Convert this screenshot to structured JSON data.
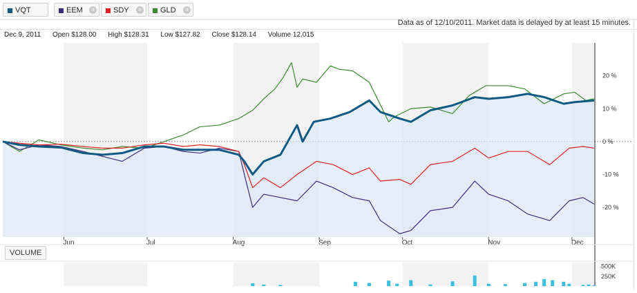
{
  "tickers": [
    {
      "symbol": "VQT",
      "color": "#0f5a82",
      "removable": false
    },
    {
      "symbol": "EEM",
      "color": "#3d2a7a",
      "removable": true
    },
    {
      "symbol": "SDY",
      "color": "#e02020",
      "removable": true
    },
    {
      "symbol": "GLD",
      "color": "#3a8a2e",
      "removable": true
    }
  ],
  "as_of_text": "Data as of 12/10/2011. Market data is delayed by at least 15 minutes.",
  "quote": {
    "date": "Dec 9, 2011",
    "open": "Open $128.00",
    "high": "High $128.31",
    "low": "Low $127.82",
    "close": "Close $128.14",
    "volume": "Volume 12,015"
  },
  "volume_button": "VOLUME",
  "colors": {
    "vqt": "#0f5a82",
    "eem": "#3d2a7a",
    "sdy": "#e02020",
    "gld": "#3a8a2e",
    "fill": "#dde9f7",
    "band": "#f2f2f2",
    "volume": "#3bbfe0"
  },
  "chart_data": {
    "type": "line",
    "x_type": "date",
    "date_range": [
      "2011-05-10",
      "2011-12-09"
    ],
    "x_tick_labels": [
      "Jun",
      "Jul",
      "Aug",
      "Sep",
      "Oct",
      "Nov",
      "Dec"
    ],
    "x_ticks": [
      "2011-06-01",
      "2011-07-01",
      "2011-08-01",
      "2011-09-01",
      "2011-10-01",
      "2011-11-01",
      "2011-12-01"
    ],
    "y_tick_labels": [
      "20 %",
      "10 %",
      "0 %",
      "-10 %",
      "-20 %"
    ],
    "y_ticks": [
      20,
      10,
      0,
      -10,
      -20
    ],
    "ylim": [
      -29,
      30
    ],
    "y_unit": "%",
    "shaded_months": [
      "Jun",
      "Aug",
      "Oct",
      "Dec"
    ],
    "series": [
      {
        "name": "GLD",
        "color": "#3a8a2e",
        "points": [
          [
            "2011-05-10",
            0
          ],
          [
            "2011-05-16",
            -3
          ],
          [
            "2011-05-23",
            0.5
          ],
          [
            "2011-05-31",
            -1
          ],
          [
            "2011-06-08",
            -2
          ],
          [
            "2011-06-15",
            -2.5
          ],
          [
            "2011-06-22",
            -1.5
          ],
          [
            "2011-06-30",
            -2
          ],
          [
            "2011-07-07",
            0
          ],
          [
            "2011-07-14",
            2
          ],
          [
            "2011-07-20",
            4.5
          ],
          [
            "2011-07-27",
            5
          ],
          [
            "2011-08-03",
            7
          ],
          [
            "2011-08-08",
            9.5
          ],
          [
            "2011-08-12",
            13
          ],
          [
            "2011-08-16",
            16
          ],
          [
            "2011-08-19",
            19.5
          ],
          [
            "2011-08-22",
            24
          ],
          [
            "2011-08-24",
            16.5
          ],
          [
            "2011-08-26",
            19
          ],
          [
            "2011-08-31",
            18
          ],
          [
            "2011-09-05",
            23
          ],
          [
            "2011-09-08",
            22
          ],
          [
            "2011-09-13",
            21.5
          ],
          [
            "2011-09-19",
            18
          ],
          [
            "2011-09-26",
            6
          ],
          [
            "2011-09-28",
            7.5
          ],
          [
            "2011-10-04",
            10
          ],
          [
            "2011-10-11",
            10.5
          ],
          [
            "2011-10-19",
            8.5
          ],
          [
            "2011-10-25",
            14
          ],
          [
            "2011-10-31",
            17
          ],
          [
            "2011-11-08",
            17
          ],
          [
            "2011-11-14",
            16
          ],
          [
            "2011-11-21",
            11.5
          ],
          [
            "2011-11-28",
            14.5
          ],
          [
            "2011-12-02",
            15
          ],
          [
            "2011-12-06",
            12.5
          ],
          [
            "2011-12-09",
            13
          ]
        ]
      },
      {
        "name": "EEM",
        "color": "#3d2a7a",
        "points": [
          [
            "2011-05-10",
            0
          ],
          [
            "2011-05-16",
            -2.5
          ],
          [
            "2011-05-23",
            -1
          ],
          [
            "2011-05-31",
            -1.5
          ],
          [
            "2011-06-08",
            -3
          ],
          [
            "2011-06-15",
            -4.5
          ],
          [
            "2011-06-22",
            -6
          ],
          [
            "2011-06-30",
            -2
          ],
          [
            "2011-07-07",
            -1.5
          ],
          [
            "2011-07-14",
            -3
          ],
          [
            "2011-07-20",
            -3.5
          ],
          [
            "2011-07-27",
            -2
          ],
          [
            "2011-08-03",
            -3
          ],
          [
            "2011-08-05",
            -10
          ],
          [
            "2011-08-08",
            -20
          ],
          [
            "2011-08-12",
            -16
          ],
          [
            "2011-08-18",
            -17
          ],
          [
            "2011-08-24",
            -18
          ],
          [
            "2011-08-31",
            -12
          ],
          [
            "2011-09-06",
            -14
          ],
          [
            "2011-09-13",
            -17
          ],
          [
            "2011-09-19",
            -18
          ],
          [
            "2011-09-23",
            -24
          ],
          [
            "2011-09-30",
            -28
          ],
          [
            "2011-10-04",
            -27
          ],
          [
            "2011-10-11",
            -21
          ],
          [
            "2011-10-19",
            -20
          ],
          [
            "2011-10-27",
            -12
          ],
          [
            "2011-11-01",
            -16
          ],
          [
            "2011-11-08",
            -18
          ],
          [
            "2011-11-15",
            -22
          ],
          [
            "2011-11-23",
            -24
          ],
          [
            "2011-11-30",
            -18
          ],
          [
            "2011-12-05",
            -17
          ],
          [
            "2011-12-09",
            -19
          ]
        ]
      },
      {
        "name": "SDY",
        "color": "#e02020",
        "points": [
          [
            "2011-05-10",
            0
          ],
          [
            "2011-05-16",
            -0.5
          ],
          [
            "2011-05-23",
            -1
          ],
          [
            "2011-05-31",
            -0.8
          ],
          [
            "2011-06-08",
            -1.5
          ],
          [
            "2011-06-15",
            -2
          ],
          [
            "2011-06-22",
            -2
          ],
          [
            "2011-06-30",
            -1
          ],
          [
            "2011-07-07",
            -0.5
          ],
          [
            "2011-07-14",
            -1.5
          ],
          [
            "2011-07-20",
            -1
          ],
          [
            "2011-07-27",
            -1.5
          ],
          [
            "2011-08-03",
            -3
          ],
          [
            "2011-08-05",
            -7
          ],
          [
            "2011-08-08",
            -14
          ],
          [
            "2011-08-12",
            -11
          ],
          [
            "2011-08-18",
            -14
          ],
          [
            "2011-08-24",
            -10
          ],
          [
            "2011-08-31",
            -6
          ],
          [
            "2011-09-06",
            -7
          ],
          [
            "2011-09-13",
            -10
          ],
          [
            "2011-09-19",
            -8
          ],
          [
            "2011-09-23",
            -12
          ],
          [
            "2011-09-30",
            -11.5
          ],
          [
            "2011-10-04",
            -13
          ],
          [
            "2011-10-11",
            -7
          ],
          [
            "2011-10-19",
            -6
          ],
          [
            "2011-10-27",
            -2
          ],
          [
            "2011-11-01",
            -5
          ],
          [
            "2011-11-08",
            -3
          ],
          [
            "2011-11-15",
            -3
          ],
          [
            "2011-11-23",
            -7
          ],
          [
            "2011-11-30",
            -2
          ],
          [
            "2011-12-05",
            -1.5
          ],
          [
            "2011-12-09",
            -2
          ]
        ]
      },
      {
        "name": "VQT",
        "color": "#0f5a82",
        "points": [
          [
            "2011-05-10",
            0
          ],
          [
            "2011-05-16",
            -1
          ],
          [
            "2011-05-23",
            -1.5
          ],
          [
            "2011-05-31",
            -1.8
          ],
          [
            "2011-06-08",
            -3.5
          ],
          [
            "2011-06-15",
            -4
          ],
          [
            "2011-06-22",
            -3.5
          ],
          [
            "2011-06-30",
            -1.5
          ],
          [
            "2011-07-07",
            -1.5
          ],
          [
            "2011-07-14",
            -2.5
          ],
          [
            "2011-07-20",
            -2.5
          ],
          [
            "2011-07-27",
            -2.5
          ],
          [
            "2011-08-03",
            -4
          ],
          [
            "2011-08-05",
            -6
          ],
          [
            "2011-08-08",
            -10
          ],
          [
            "2011-08-12",
            -6
          ],
          [
            "2011-08-18",
            -4
          ],
          [
            "2011-08-24",
            5
          ],
          [
            "2011-08-26",
            0
          ],
          [
            "2011-08-30",
            6
          ],
          [
            "2011-09-05",
            7
          ],
          [
            "2011-09-12",
            9
          ],
          [
            "2011-09-19",
            12.5
          ],
          [
            "2011-09-23",
            9
          ],
          [
            "2011-09-30",
            7
          ],
          [
            "2011-10-04",
            6
          ],
          [
            "2011-10-11",
            9.5
          ],
          [
            "2011-10-19",
            11
          ],
          [
            "2011-10-27",
            13.5
          ],
          [
            "2011-11-01",
            13
          ],
          [
            "2011-11-08",
            13.5
          ],
          [
            "2011-11-15",
            14.5
          ],
          [
            "2011-11-21",
            13.5
          ],
          [
            "2011-11-28",
            11.5
          ],
          [
            "2011-12-02",
            12
          ],
          [
            "2011-12-09",
            12.5
          ]
        ]
      }
    ],
    "volume": {
      "y_tick_labels": [
        "500K",
        "250K"
      ],
      "y_ticks": [
        500,
        250
      ],
      "ylim": [
        0,
        600
      ],
      "bars": [
        [
          "2011-08-08",
          70
        ],
        [
          "2011-08-12",
          40
        ],
        [
          "2011-08-18",
          30
        ],
        [
          "2011-09-14",
          110
        ],
        [
          "2011-09-19",
          80
        ],
        [
          "2011-09-26",
          140
        ],
        [
          "2011-09-29",
          60
        ],
        [
          "2011-10-04",
          150
        ],
        [
          "2011-10-11",
          40
        ],
        [
          "2011-10-19",
          120
        ],
        [
          "2011-10-27",
          270
        ],
        [
          "2011-11-01",
          60
        ],
        [
          "2011-11-07",
          50
        ],
        [
          "2011-11-14",
          80
        ],
        [
          "2011-11-18",
          110
        ],
        [
          "2011-11-21",
          180
        ],
        [
          "2011-11-24",
          150
        ],
        [
          "2011-11-28",
          110
        ],
        [
          "2011-11-30",
          60
        ],
        [
          "2011-12-05",
          30
        ],
        [
          "2011-12-07",
          40
        ],
        [
          "2011-12-09",
          20
        ]
      ]
    }
  }
}
